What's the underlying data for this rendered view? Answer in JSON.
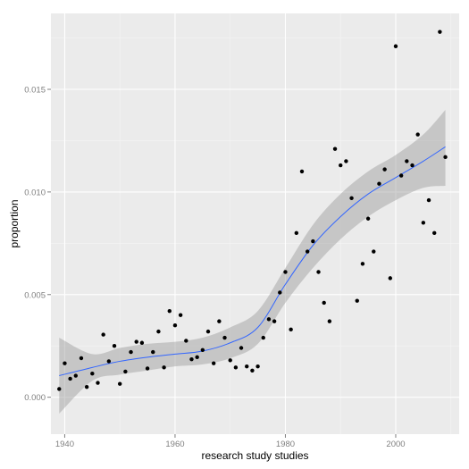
{
  "chart_data": {
    "type": "scatter",
    "title": "",
    "xlabel": "research study studies",
    "ylabel": "proportion",
    "xlim": [
      1937.5,
      2011.5
    ],
    "ylim": [
      -0.0018,
      0.0187
    ],
    "x_ticks": [
      1940,
      1960,
      1980,
      2000
    ],
    "x_tick_labels": [
      "1940",
      "1960",
      "1980",
      "2000"
    ],
    "y_ticks": [
      0.0,
      0.005,
      0.01,
      0.015
    ],
    "y_tick_labels": [
      "0.000",
      "0.005",
      "0.010",
      "0.015"
    ],
    "grid": true,
    "legend": "none",
    "colors": {
      "panel": "#ebebeb",
      "grid_major": "#ffffff",
      "grid_minor": "#f5f5f5",
      "points": "#000000",
      "smooth_line": "#3366ff",
      "confidence_band": "#999999"
    },
    "series": [
      {
        "kind": "points",
        "x": [
          1939,
          1940,
          1941,
          1942,
          1943,
          1944,
          1945,
          1946,
          1947,
          1948,
          1949,
          1950,
          1951,
          1952,
          1953,
          1954,
          1955,
          1956,
          1957,
          1958,
          1959,
          1960,
          1961,
          1962,
          1963,
          1964,
          1965,
          1966,
          1967,
          1968,
          1969,
          1970,
          1971,
          1972,
          1973,
          1974,
          1975,
          1976,
          1977,
          1978,
          1979,
          1980,
          1981,
          1982,
          1983,
          1984,
          1985,
          1986,
          1987,
          1988,
          1989,
          1990,
          1991,
          1992,
          1993,
          1994,
          1995,
          1996,
          1997,
          1998,
          1999,
          2000,
          2001,
          2002,
          2003,
          2004,
          2005,
          2006,
          2007,
          2008,
          2009
        ],
        "y": [
          0.0004,
          0.00165,
          0.0009,
          0.00105,
          0.0019,
          0.0005,
          0.00115,
          0.0007,
          0.00305,
          0.00175,
          0.0025,
          0.00065,
          0.00125,
          0.0022,
          0.0027,
          0.00265,
          0.0014,
          0.0022,
          0.0032,
          0.00145,
          0.0042,
          0.0035,
          0.004,
          0.00275,
          0.00185,
          0.00195,
          0.0023,
          0.0032,
          0.00165,
          0.0037,
          0.0029,
          0.0018,
          0.00145,
          0.0024,
          0.0015,
          0.0013,
          0.0015,
          0.0029,
          0.0038,
          0.0037,
          0.0051,
          0.0061,
          0.0033,
          0.008,
          0.011,
          0.0071,
          0.0076,
          0.0061,
          0.0046,
          0.0037,
          0.0121,
          0.0113,
          0.0115,
          0.0097,
          0.0047,
          0.0065,
          0.0087,
          0.0071,
          0.0104,
          0.0111,
          0.0058,
          0.0171,
          0.0108,
          0.0115,
          0.0113,
          0.0128,
          0.0085,
          0.0096,
          0.008,
          0.0178,
          0.0117
        ]
      },
      {
        "kind": "smooth",
        "x": [
          1939,
          1945,
          1950,
          1955,
          1960,
          1965,
          1970,
          1975,
          1980,
          1985,
          1990,
          1995,
          2000,
          2005,
          2009
        ],
        "y": [
          0.00105,
          0.00145,
          0.00175,
          0.00195,
          0.0021,
          0.00225,
          0.00265,
          0.0034,
          0.0055,
          0.0074,
          0.0088,
          0.0099,
          0.0107,
          0.0115,
          0.0122
        ],
        "lower": [
          -0.0008,
          0.0008,
          0.0011,
          0.0013,
          0.0015,
          0.0016,
          0.0019,
          0.0026,
          0.0046,
          0.0063,
          0.0077,
          0.0088,
          0.0096,
          0.0102,
          0.0103
        ],
        "upper": [
          0.0029,
          0.0021,
          0.0024,
          0.0026,
          0.0027,
          0.0029,
          0.0034,
          0.0042,
          0.0063,
          0.0084,
          0.0099,
          0.011,
          0.0118,
          0.0128,
          0.014
        ]
      }
    ]
  }
}
